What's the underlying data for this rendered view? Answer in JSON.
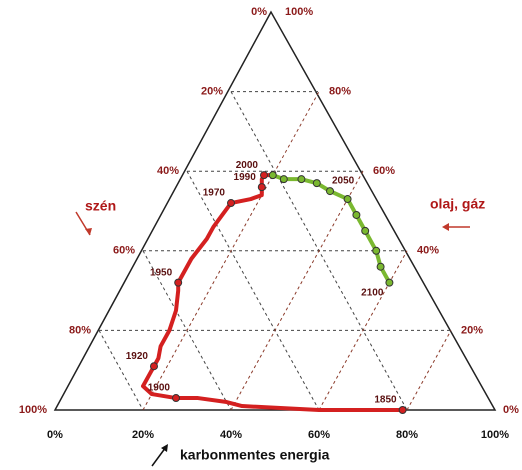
{
  "chart_data": {
    "type": "ternary",
    "left_axis_title": "szén",
    "right_axis_title": "olaj, gáz",
    "bottom_axis_title": "karbonmentes energia",
    "left_ticks": [
      {
        "value": 0,
        "label": "0%"
      },
      {
        "value": 20,
        "label": "20%"
      },
      {
        "value": 40,
        "label": "40%"
      },
      {
        "value": 60,
        "label": "60%"
      },
      {
        "value": 80,
        "label": "80%"
      },
      {
        "value": 100,
        "label": "100%"
      }
    ],
    "right_ticks": [
      {
        "value": 100,
        "label": "100%"
      },
      {
        "value": 80,
        "label": "80%"
      },
      {
        "value": 60,
        "label": "60%"
      },
      {
        "value": 40,
        "label": "40%"
      },
      {
        "value": 20,
        "label": "20%"
      },
      {
        "value": 0,
        "label": "0%"
      }
    ],
    "bottom_ticks": [
      {
        "value": 0,
        "label": "0%"
      },
      {
        "value": 20,
        "label": "20%"
      },
      {
        "value": 40,
        "label": "40%"
      },
      {
        "value": 60,
        "label": "60%"
      },
      {
        "value": 80,
        "label": "80%"
      },
      {
        "value": 100,
        "label": "100%"
      }
    ],
    "grid": true,
    "series": [
      {
        "color": "#d42020",
        "markers": "labeled",
        "karbonmentes": [
          79,
          60,
          42,
          38,
          31,
          26,
          20,
          17,
          17,
          17,
          17,
          16,
          16,
          15,
          13,
          12,
          12,
          13,
          13,
          14,
          18,
          20,
          19,
          18,
          18,
          20
        ],
        "olaj": [
          0,
          0,
          1,
          2,
          3,
          3,
          4,
          6,
          9,
          11,
          13,
          16,
          20,
          25,
          30,
          32,
          38,
          43,
          46,
          52,
          53,
          54,
          56,
          58,
          59,
          59
        ],
        "labels": [
          "1850",
          null,
          null,
          null,
          null,
          "1900",
          null,
          null,
          null,
          "1920",
          null,
          null,
          null,
          null,
          null,
          "1950",
          null,
          null,
          null,
          "1970",
          null,
          null,
          "1990",
          null,
          "2000",
          null
        ]
      },
      {
        "color": "#7ab830",
        "markers": "all",
        "karbonmentes": [
          20,
          23,
          27,
          31,
          35,
          40,
          44,
          48,
          53,
          56,
          60
        ],
        "olaj": [
          59,
          58,
          58,
          57,
          55,
          53,
          49,
          45,
          40,
          36,
          32
        ],
        "labels": [
          null,
          null,
          null,
          null,
          "2050",
          null,
          null,
          null,
          null,
          null,
          "2100"
        ]
      }
    ]
  }
}
